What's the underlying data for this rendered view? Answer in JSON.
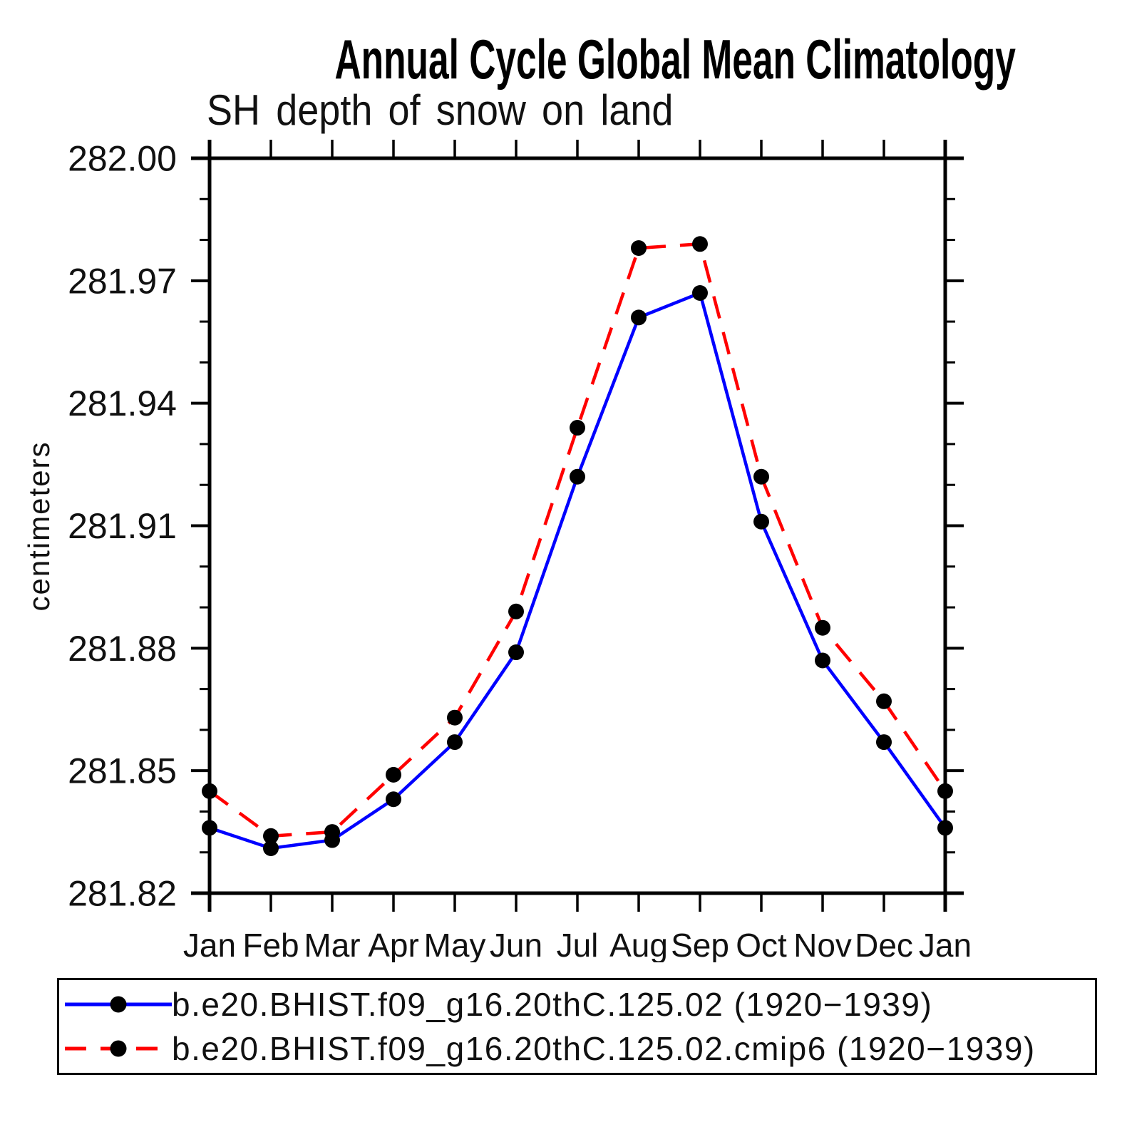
{
  "page": {
    "background": "#ffffff"
  },
  "chart_data": {
    "type": "line",
    "title": "Annual Cycle Global Mean Climatology",
    "subtitle": "SH depth of snow on land",
    "ylabel": "centimeters",
    "categories": [
      "Jan",
      "Feb",
      "Mar",
      "Apr",
      "May",
      "Jun",
      "Jul",
      "Aug",
      "Sep",
      "Oct",
      "Nov",
      "Dec",
      "Jan"
    ],
    "ylim": [
      281.82,
      282.0
    ],
    "yticks": [
      "282.00",
      "281.97",
      "281.94",
      "281.91",
      "281.88",
      "281.85",
      "281.82"
    ],
    "ytick_major_step": 0.03,
    "ytick_minor_step": 0.01,
    "grid": false,
    "legend_position": "bottom",
    "axis_color": "#000000",
    "series": [
      {
        "name": "b.e20.BHIST.f09_g16.20thC.125.02 (1920−1939)",
        "color": "#0000ff",
        "line_style": "solid",
        "marker": "circle",
        "marker_color": "#000000",
        "values": [
          281.836,
          281.831,
          281.833,
          281.843,
          281.857,
          281.879,
          281.922,
          281.961,
          281.967,
          281.911,
          281.877,
          281.857,
          281.836
        ]
      },
      {
        "name": "b.e20.BHIST.f09_g16.20thC.125.02.cmip6 (1920−1939)",
        "color": "#ff0000",
        "line_style": "dashed",
        "marker": "circle",
        "marker_color": "#000000",
        "values": [
          281.845,
          281.834,
          281.835,
          281.849,
          281.863,
          281.889,
          281.934,
          281.978,
          281.979,
          281.922,
          281.885,
          281.867,
          281.845
        ]
      }
    ]
  }
}
